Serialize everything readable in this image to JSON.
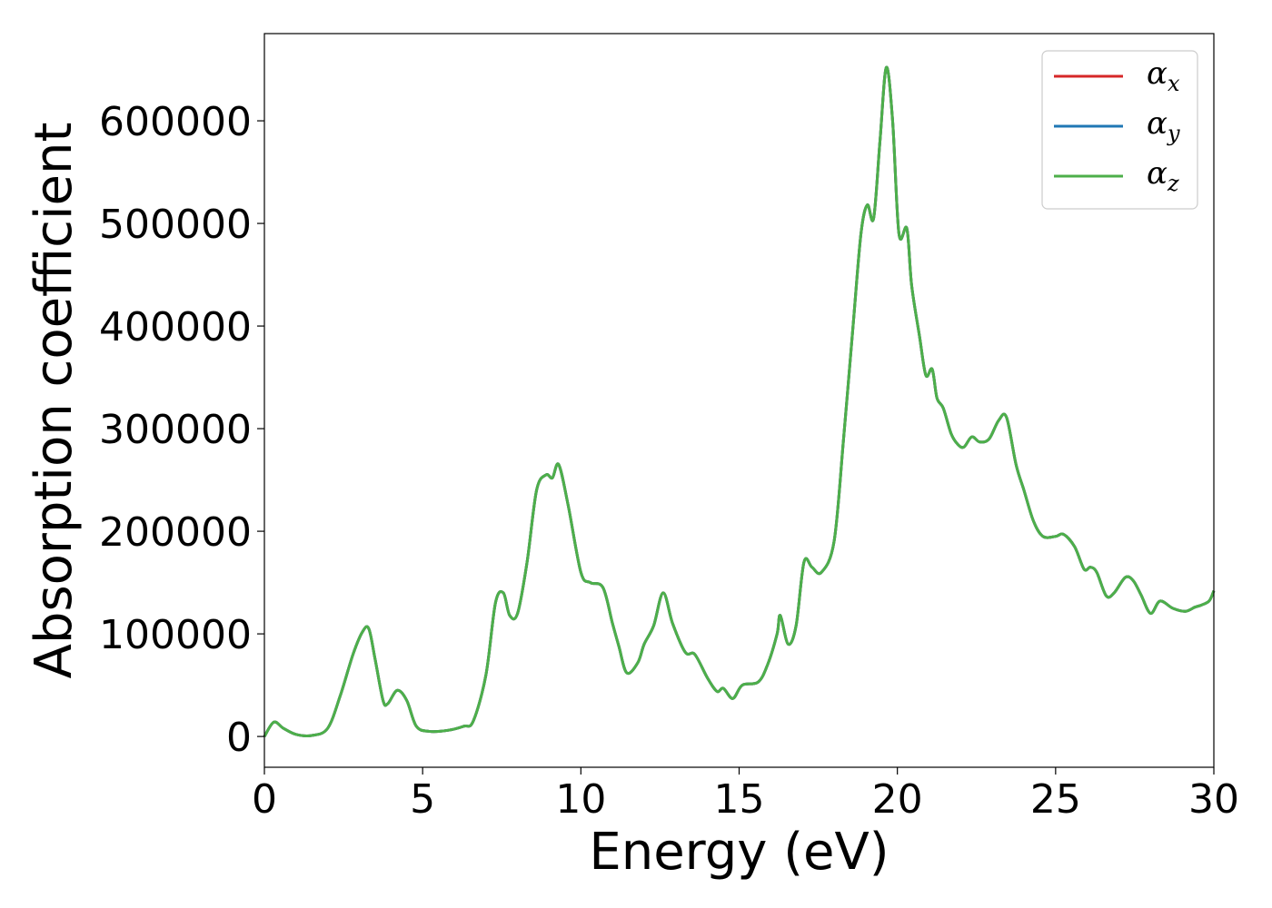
{
  "chart_data": {
    "type": "line",
    "title": "",
    "xlabel": "Energy (eV)",
    "ylabel": "Absorption coefficient",
    "xlim": [
      0,
      30
    ],
    "ylim": [
      -30000,
      685000
    ],
    "xticks": [
      0,
      5,
      10,
      15,
      20,
      25,
      30
    ],
    "yticks": [
      0,
      100000,
      200000,
      300000,
      400000,
      500000,
      600000
    ],
    "xtick_labels": [
      "0",
      "5",
      "10",
      "15",
      "20",
      "25",
      "30"
    ],
    "ytick_labels": [
      "0",
      "100000",
      "200000",
      "300000",
      "400000",
      "500000",
      "600000"
    ],
    "grid": false,
    "legend_position": "top-right",
    "legend": [
      {
        "symbol": "α",
        "sub": "x",
        "color": "#d62728"
      },
      {
        "symbol": "α",
        "sub": "y",
        "color": "#1f77b4"
      },
      {
        "symbol": "α",
        "sub": "z",
        "color": "#4daf4a"
      }
    ],
    "x": [
      0,
      0.3,
      0.6,
      1.0,
      1.5,
      2.0,
      2.4,
      2.8,
      3.1,
      3.3,
      3.5,
      3.75,
      3.9,
      4.2,
      4.5,
      4.8,
      5.2,
      5.8,
      6.3,
      6.6,
      7.0,
      7.3,
      7.55,
      7.75,
      8.0,
      8.3,
      8.6,
      8.9,
      9.1,
      9.3,
      9.6,
      10.0,
      10.3,
      10.7,
      11.0,
      11.2,
      11.45,
      11.8,
      12.0,
      12.3,
      12.6,
      12.9,
      13.3,
      13.6,
      14.0,
      14.3,
      14.5,
      14.8,
      15.1,
      15.6,
      15.9,
      16.2,
      16.3,
      16.55,
      16.8,
      17.05,
      17.3,
      17.6,
      18.0,
      18.3,
      18.6,
      18.85,
      19.05,
      19.25,
      19.45,
      19.65,
      19.85,
      20.05,
      20.3,
      20.45,
      20.7,
      20.9,
      21.1,
      21.25,
      21.45,
      21.7,
      21.9,
      22.1,
      22.35,
      22.6,
      22.9,
      23.2,
      23.45,
      23.75,
      24.0,
      24.3,
      24.6,
      25.0,
      25.25,
      25.6,
      25.9,
      26.1,
      26.3,
      26.6,
      26.85,
      27.2,
      27.45,
      27.7,
      28.0,
      28.3,
      28.7,
      29.1,
      29.4,
      29.6,
      29.85,
      30.0
    ],
    "series": [
      {
        "values": [
          0,
          14000,
          8000,
          2000,
          1000,
          8000,
          40000,
          80000,
          102000,
          105000,
          75000,
          35000,
          32000,
          45000,
          35000,
          10000,
          5000,
          6000,
          10000,
          15000,
          60000,
          130000,
          140000,
          118000,
          120000,
          170000,
          240000,
          255000,
          252000,
          265000,
          225000,
          160000,
          150000,
          145000,
          110000,
          88000,
          62000,
          72000,
          90000,
          108000,
          140000,
          110000,
          82000,
          80000,
          57000,
          44000,
          47000,
          37000,
          50000,
          53000,
          70000,
          100000,
          118000,
          90000,
          108000,
          170000,
          165000,
          160000,
          190000,
          290000,
          400000,
          490000,
          518000,
          505000,
          580000,
          652000,
          600000,
          490000,
          495000,
          440000,
          390000,
          352000,
          358000,
          330000,
          320000,
          295000,
          285000,
          282000,
          292000,
          287000,
          290000,
          308000,
          311000,
          265000,
          240000,
          210000,
          195000,
          195000,
          197000,
          185000,
          163000,
          165000,
          160000,
          137000,
          140000,
          155000,
          152000,
          138000,
          120000,
          132000,
          125000,
          122000,
          126000,
          128000,
          132000,
          142000
        ]
      },
      {
        "values": [
          0,
          14000,
          8000,
          2000,
          1000,
          8000,
          40000,
          80000,
          102000,
          105000,
          75000,
          35000,
          32000,
          45000,
          35000,
          10000,
          5000,
          6000,
          10000,
          15000,
          60000,
          130000,
          140000,
          118000,
          120000,
          170000,
          240000,
          255000,
          252000,
          265000,
          225000,
          160000,
          150000,
          145000,
          110000,
          88000,
          62000,
          72000,
          90000,
          108000,
          140000,
          110000,
          82000,
          80000,
          57000,
          44000,
          47000,
          37000,
          50000,
          53000,
          70000,
          100000,
          118000,
          90000,
          108000,
          170000,
          165000,
          160000,
          190000,
          290000,
          400000,
          490000,
          518000,
          505000,
          580000,
          652000,
          600000,
          490000,
          495000,
          440000,
          390000,
          352000,
          358000,
          330000,
          320000,
          295000,
          285000,
          282000,
          292000,
          287000,
          290000,
          308000,
          311000,
          265000,
          240000,
          210000,
          195000,
          195000,
          197000,
          185000,
          163000,
          165000,
          160000,
          137000,
          140000,
          155000,
          152000,
          138000,
          120000,
          132000,
          125000,
          122000,
          126000,
          128000,
          132000,
          142000
        ]
      },
      {
        "values": [
          0,
          14000,
          8000,
          2000,
          1000,
          8000,
          40000,
          80000,
          102000,
          105000,
          75000,
          35000,
          32000,
          45000,
          35000,
          10000,
          5000,
          6000,
          10000,
          15000,
          60000,
          130000,
          140000,
          118000,
          120000,
          170000,
          240000,
          255000,
          252000,
          265000,
          225000,
          160000,
          150000,
          145000,
          110000,
          88000,
          62000,
          72000,
          90000,
          108000,
          140000,
          110000,
          82000,
          80000,
          57000,
          44000,
          47000,
          37000,
          50000,
          53000,
          70000,
          100000,
          118000,
          90000,
          108000,
          170000,
          165000,
          160000,
          190000,
          290000,
          400000,
          490000,
          518000,
          505000,
          580000,
          652000,
          600000,
          490000,
          495000,
          440000,
          390000,
          352000,
          358000,
          330000,
          320000,
          295000,
          285000,
          282000,
          292000,
          287000,
          290000,
          308000,
          311000,
          265000,
          240000,
          210000,
          195000,
          195000,
          197000,
          185000,
          163000,
          165000,
          160000,
          137000,
          140000,
          155000,
          152000,
          138000,
          120000,
          132000,
          125000,
          122000,
          126000,
          128000,
          132000,
          142000
        ]
      }
    ]
  }
}
